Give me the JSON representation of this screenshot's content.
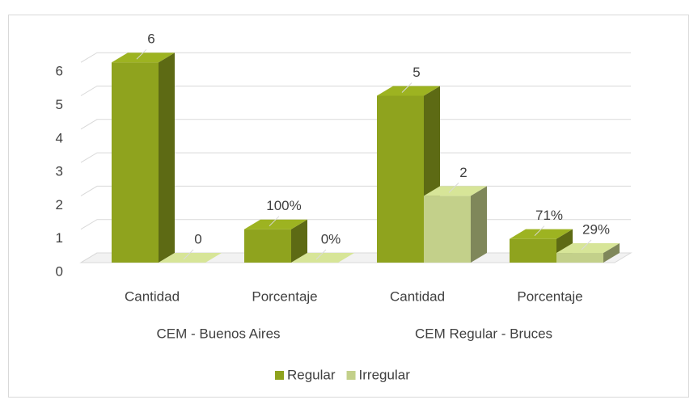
{
  "chart_data": {
    "type": "bar3d",
    "category_groups": [
      {
        "label": "CEM - Buenos Aires",
        "categories": [
          "Cantidad",
          "Porcentaje"
        ]
      },
      {
        "label": "CEM Regular - Bruces",
        "categories": [
          "Cantidad",
          "Porcentaje"
        ]
      }
    ],
    "series": [
      {
        "name": "Regular",
        "color": "#8fa31e",
        "values": [
          6,
          1,
          5,
          0.71
        ],
        "value_labels": [
          "6",
          "100%",
          "5",
          "71%"
        ]
      },
      {
        "name": "Irregular",
        "color": "#c3d08a",
        "values": [
          0,
          0,
          2,
          0.29
        ],
        "value_labels": [
          "0",
          "0%",
          "2",
          "29%"
        ]
      }
    ],
    "ylim": [
      0,
      7
    ],
    "yticks": [
      0,
      1,
      2,
      3,
      4,
      5,
      6
    ],
    "grid": true,
    "legend": "bottom"
  }
}
